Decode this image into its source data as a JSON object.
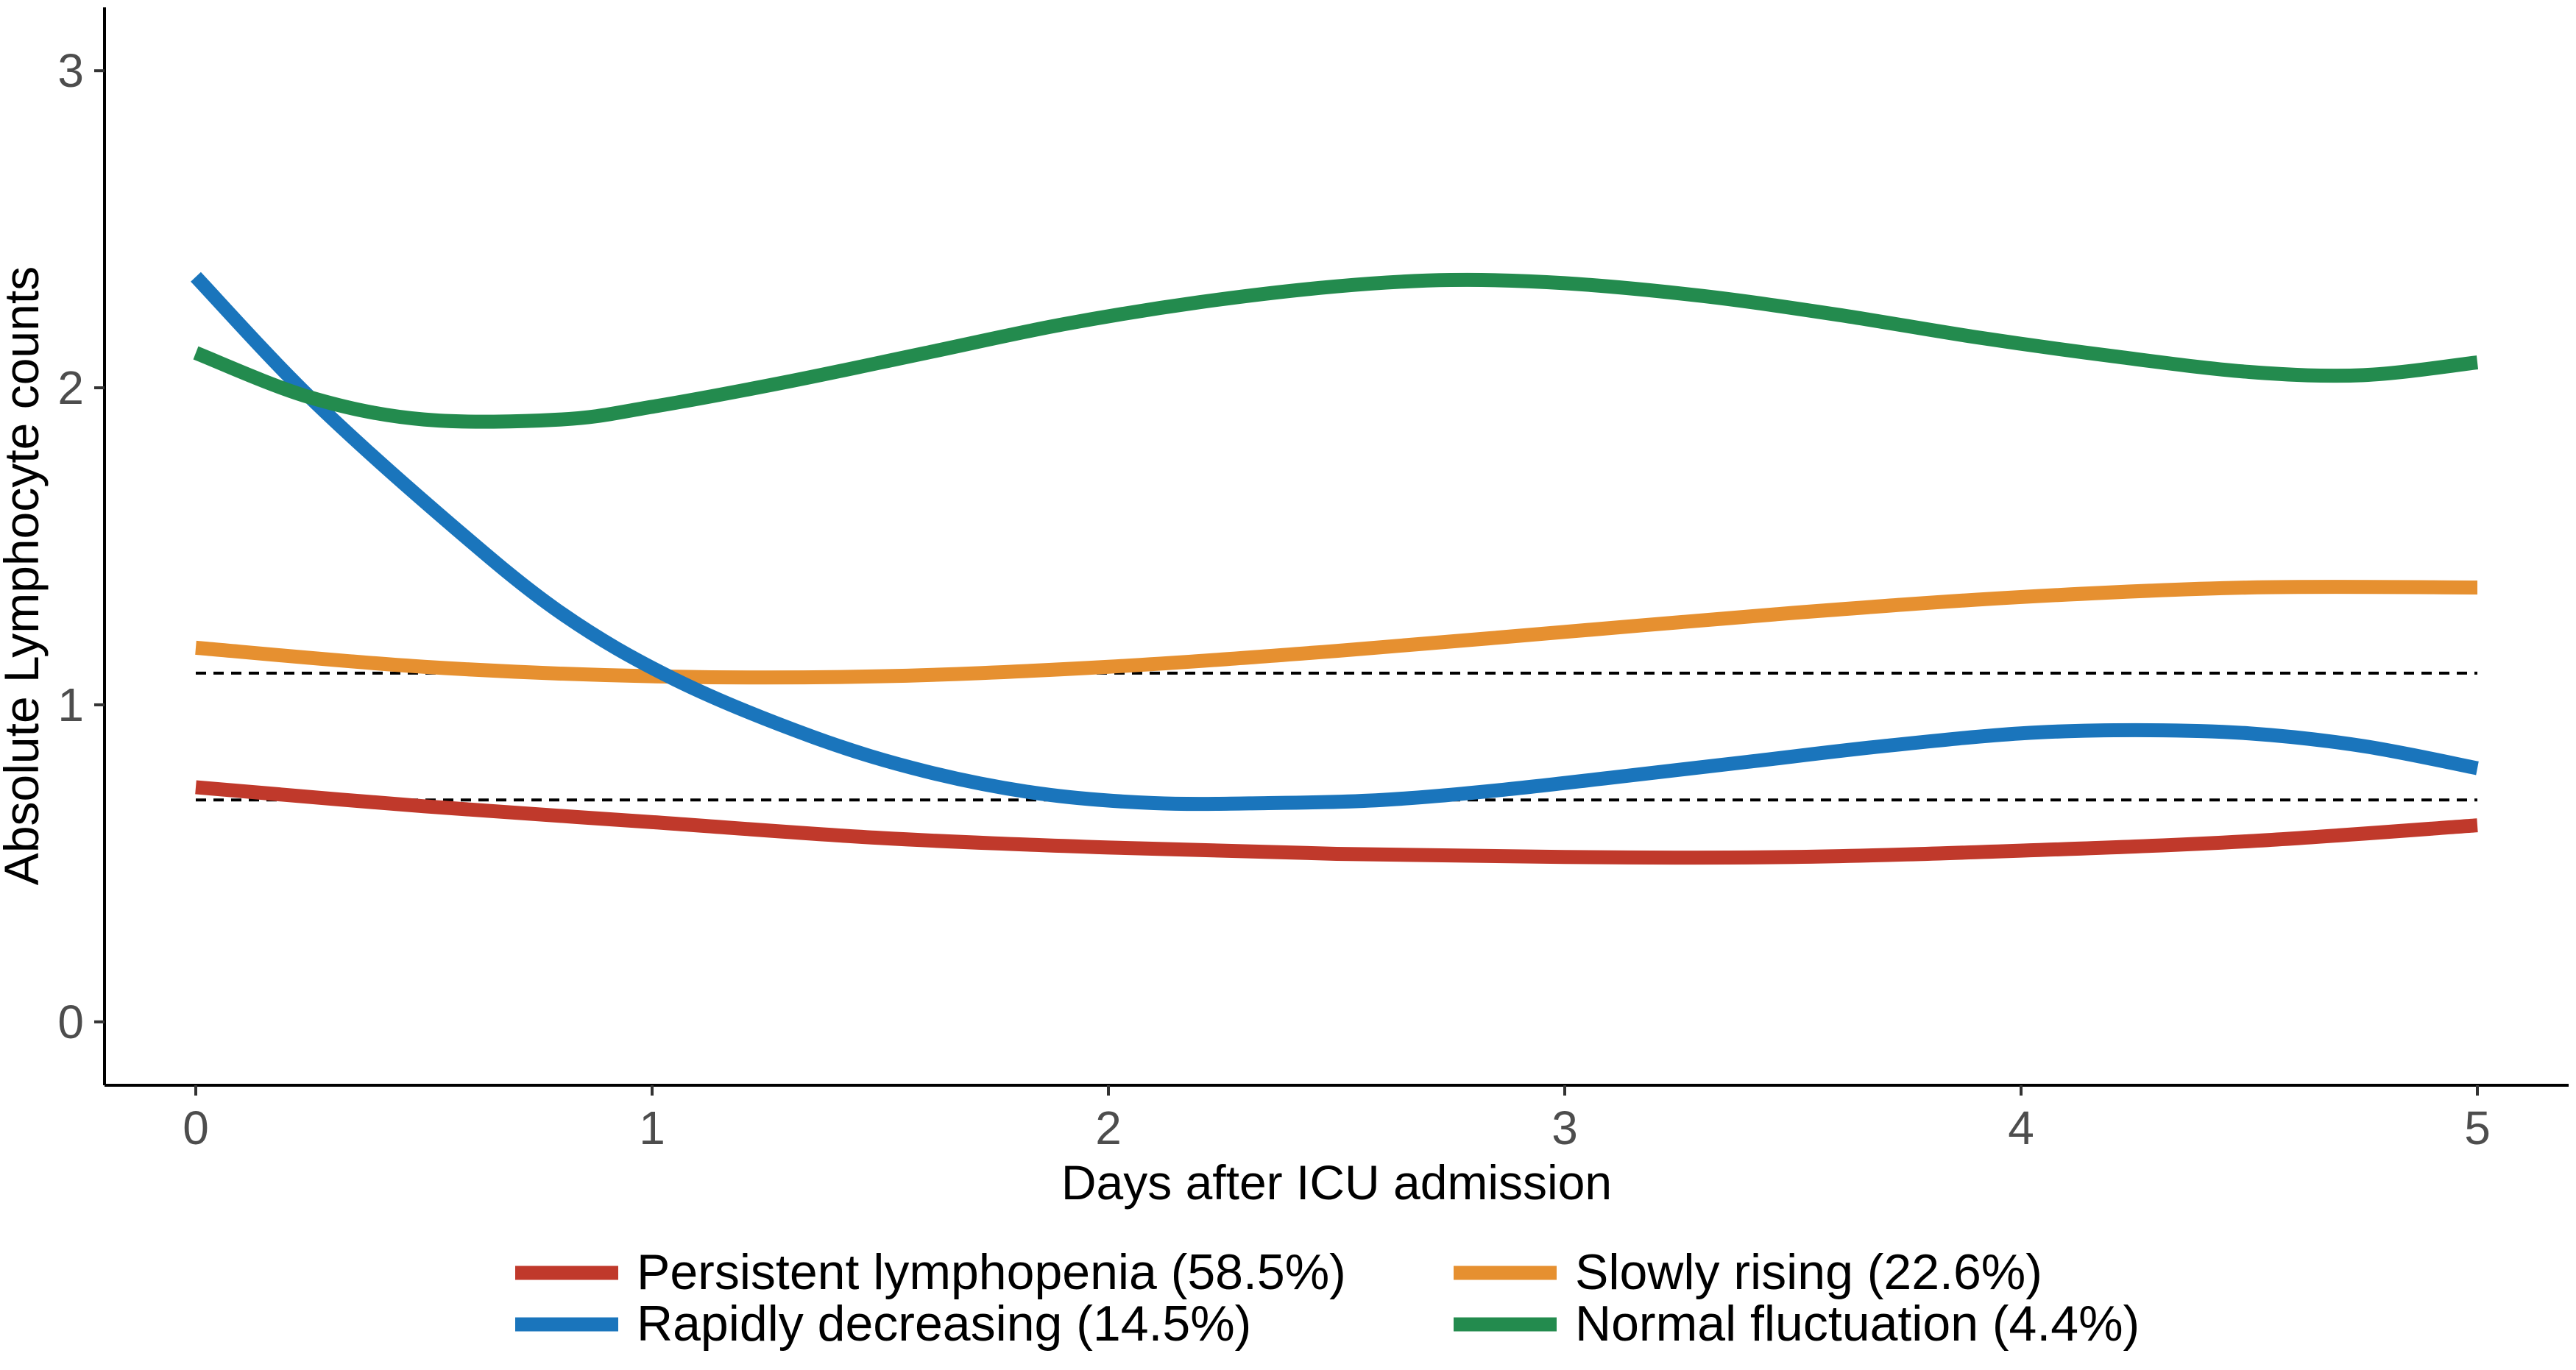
{
  "chart_data": {
    "type": "line",
    "title": "",
    "xlabel": "Days after ICU admission",
    "ylabel": "Absolute Lymphocyte counts",
    "xlim": [
      -0.2,
      5.2
    ],
    "ylim": [
      -0.2,
      3.2
    ],
    "xticks": [
      0,
      1,
      2,
      3,
      4,
      5
    ],
    "yticks": [
      0,
      1,
      2,
      3
    ],
    "grid": false,
    "legend_position": "bottom",
    "reference_lines": [
      {
        "orientation": "horizontal",
        "y": 1.1,
        "style": "dashed",
        "color": "#000000"
      },
      {
        "orientation": "horizontal",
        "y": 0.7,
        "style": "dashed",
        "color": "#000000"
      }
    ],
    "series": [
      {
        "name": "Persistent lymphopenia (58.5%)",
        "color": "#C0392B",
        "x": [
          0,
          0.5,
          1,
          1.5,
          2,
          2.5,
          3,
          3.5,
          4,
          4.5,
          5
        ],
        "y": [
          0.74,
          0.68,
          0.63,
          0.58,
          0.55,
          0.53,
          0.52,
          0.52,
          0.54,
          0.57,
          0.62
        ]
      },
      {
        "name": "Slowly rising (22.6%)",
        "color": "#E69030",
        "x": [
          0,
          0.5,
          1,
          1.5,
          2,
          2.5,
          3,
          3.5,
          4,
          4.5,
          5
        ],
        "y": [
          1.18,
          1.12,
          1.09,
          1.09,
          1.12,
          1.17,
          1.23,
          1.29,
          1.34,
          1.37,
          1.37
        ]
      },
      {
        "name": "Rapidly decreasing (14.5%)",
        "color": "#1A75BC",
        "x": [
          0,
          0.25,
          0.55,
          0.8,
          1.05,
          1.35,
          1.6,
          1.85,
          2.1,
          2.35,
          2.6,
          2.85,
          3.1,
          3.4,
          3.7,
          4.0,
          4.25,
          4.5,
          4.75,
          5
        ],
        "y": [
          2.35,
          1.97,
          1.58,
          1.29,
          1.08,
          0.9,
          0.79,
          0.72,
          0.69,
          0.69,
          0.7,
          0.73,
          0.77,
          0.82,
          0.87,
          0.91,
          0.92,
          0.91,
          0.87,
          0.8
        ]
      },
      {
        "name": "Normal fluctuation (4.4%)",
        "color": "#238B4E",
        "x": [
          0,
          0.25,
          0.5,
          0.8,
          1.0,
          1.3,
          1.6,
          1.9,
          2.2,
          2.5,
          2.75,
          3.0,
          3.3,
          3.6,
          3.9,
          4.2,
          4.5,
          4.75,
          5
        ],
        "y": [
          2.11,
          1.97,
          1.9,
          1.9,
          1.94,
          2.02,
          2.11,
          2.2,
          2.27,
          2.32,
          2.34,
          2.33,
          2.29,
          2.23,
          2.16,
          2.1,
          2.05,
          2.04,
          2.08
        ]
      }
    ],
    "legend_order": [
      "Persistent lymphopenia (58.5%)",
      "Slowly rising (22.6%)",
      "Rapidly decreasing (14.5%)",
      "Normal fluctuation (4.4%)"
    ]
  }
}
